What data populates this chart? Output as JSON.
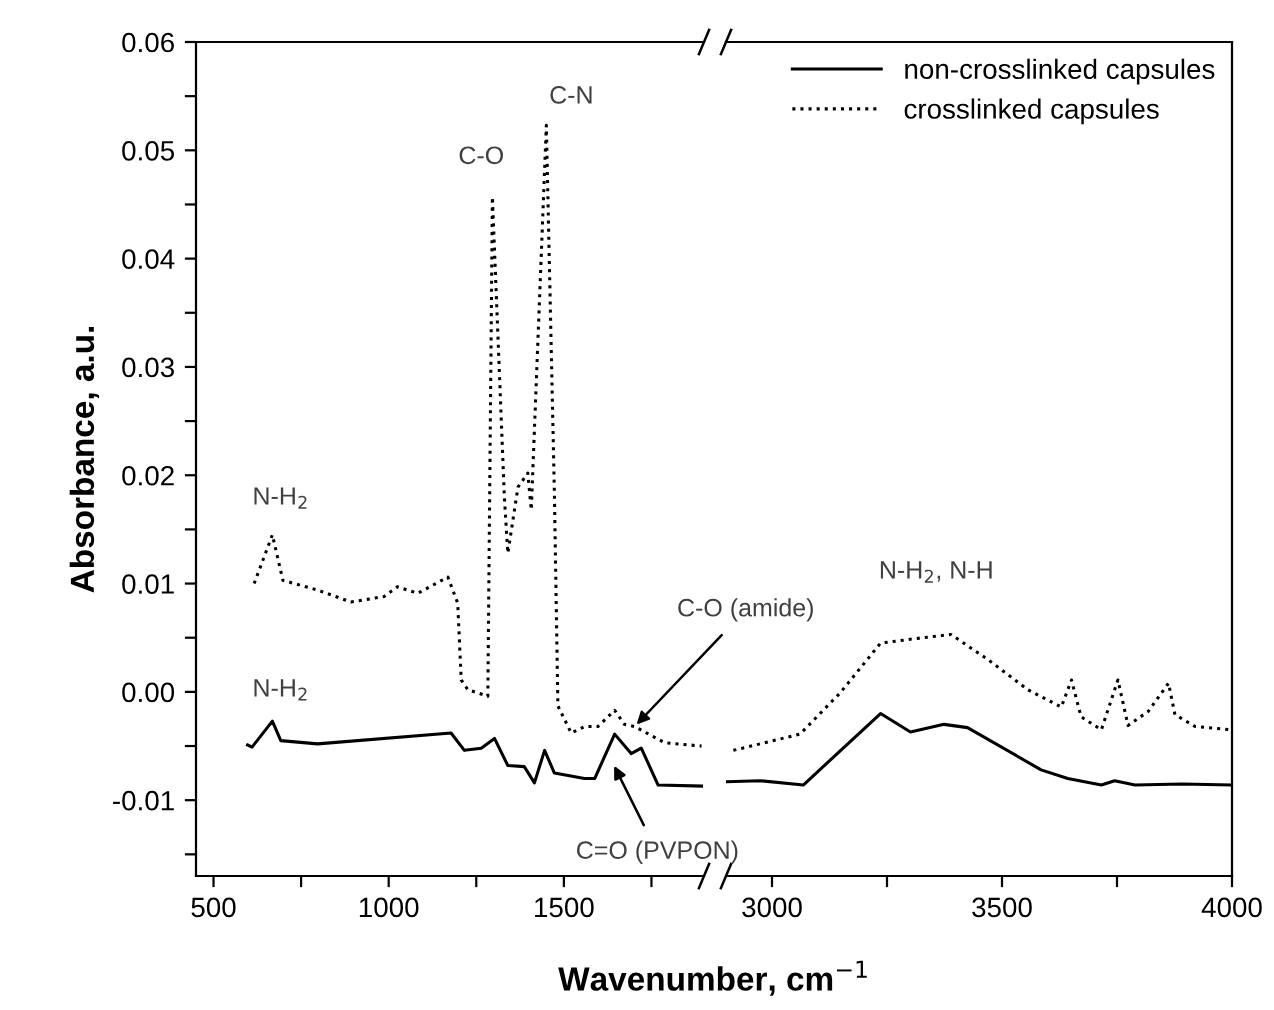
{
  "chart_data": [
    {
      "type": "line",
      "ylabel": "Absorbance, a.u.",
      "xlabel": "Wavenumber, cm$^{−1}$",
      "xlim": [
        450,
        1900
      ],
      "ylim": [
        -0.017,
        0.06
      ],
      "xticks": [
        500,
        {
          "value": 750,
          "label": null
        },
        1000,
        {
          "value": 1250,
          "label": null
        },
        1500,
        {
          "value": 1750,
          "label": null
        }
      ],
      "yticks": [
        {
          "value": -0.015,
          "label": null
        },
        {
          "value": -0.01,
          "label": "-0.01"
        },
        {
          "value": -0.005,
          "label": null
        },
        {
          "value": 0,
          "label": "0.00"
        },
        {
          "value": 0.005,
          "label": null
        },
        {
          "value": 0.01,
          "label": "0.01"
        },
        {
          "value": 0.015,
          "label": null
        },
        {
          "value": 0.02,
          "label": "0.02"
        },
        {
          "value": 0.025,
          "label": null
        },
        {
          "value": 0.03,
          "label": "0.03"
        },
        {
          "value": 0.035,
          "label": null
        },
        {
          "value": 0.04,
          "label": "0.04"
        },
        {
          "value": 0.045,
          "label": null
        },
        {
          "value": 0.05,
          "label": "0.05"
        },
        {
          "value": 0.055,
          "label": null
        },
        {
          "value": 0.06,
          "label": "0.06"
        }
      ],
      "grid": false,
      "series": [
        {
          "color": "#000000",
          "line_style": "solid",
          "x": [
            597,
            610,
            668,
            692,
            797,
            1178,
            1216,
            1264,
            1302,
            1340,
            1387,
            1416,
            1445,
            1473,
            1559,
            1588,
            1645,
            1692,
            1721,
            1769,
            1893
          ],
          "values": [
            -0.0049,
            -0.0051,
            -0.0027,
            -0.0045,
            -0.0048,
            -0.0038,
            -0.0054,
            -0.0052,
            -0.0043,
            -0.0068,
            -0.0069,
            -0.0084,
            -0.0054,
            -0.0075,
            -0.008,
            -0.008,
            -0.0039,
            -0.0057,
            -0.0052,
            -0.0086,
            -0.0087
          ]
        },
        {
          "color": "#000000",
          "line_style": "dotted",
          "x": [
            616,
            668,
            698,
            797,
            892,
            987,
            1025,
            1083,
            1169,
            1197,
            1207,
            1226,
            1283,
            1296,
            1330,
            1340,
            1369,
            1397,
            1407,
            1450,
            1473,
            1483,
            1521,
            1559,
            1597,
            1645,
            1673,
            1702,
            1788,
            1893
          ],
          "values": [
            0.01,
            0.0145,
            0.0103,
            0.0094,
            0.0083,
            0.0088,
            0.0097,
            0.0091,
            0.0106,
            0.0082,
            0.0011,
            0.0002,
            -0.0004,
            0.0457,
            0.0181,
            0.0128,
            0.0189,
            0.0202,
            0.0168,
            0.0523,
            0.0183,
            -0.0013,
            -0.0038,
            -0.0032,
            -0.0032,
            -0.0017,
            -0.003,
            -0.0032,
            -0.0047,
            -0.005
          ]
        }
      ],
      "annotations": [
        {
          "text": "C-O",
          "x": 1296,
          "y": 0.0457
        },
        {
          "text": "C-N",
          "x": 1450,
          "y": 0.0523
        },
        {
          "text": "N-H$_{2}$",
          "x": 668,
          "y": 0.0145
        },
        {
          "text": "N-H$_{2}$",
          "x": 668,
          "y": -0.0027
        },
        {
          "text": "C-O (amide)",
          "x": 1702,
          "y": -0.0032
        },
        {
          "text": "C=O (PVPON)",
          "x": 1640,
          "y": -0.0066
        }
      ]
    },
    {
      "type": "line",
      "xlim": [
        2900,
        4000
      ],
      "ylim": [
        -0.017,
        0.06
      ],
      "tick_labels": "x",
      "xticks": [
        3000,
        {
          "value": 3250,
          "label": null
        },
        3500,
        {
          "value": 3750,
          "label": null
        },
        4000
      ],
      "grid": false,
      "legend": "top right",
      "series": [
        {
          "name": "non-crosslinked capsules",
          "color": "#000000",
          "line_style": "solid",
          "x": [
            2901,
            2974,
            3068,
            3236,
            3301,
            3374,
            3425,
            3585,
            3643,
            3716,
            3745,
            3789,
            3891,
            4000
          ],
          "values": [
            -0.0083,
            -0.0082,
            -0.0086,
            -0.002,
            -0.0037,
            -0.003,
            -0.0033,
            -0.0072,
            -0.008,
            -0.0086,
            -0.0082,
            -0.0086,
            -0.0085,
            -0.0086
          ]
        },
        {
          "name": "crosslinked capsules",
          "color": "#000000",
          "line_style": "dotted",
          "x": [
            2916,
            3061,
            3148,
            3236,
            3309,
            3389,
            3469,
            3556,
            3629,
            3651,
            3672,
            3716,
            3752,
            3774,
            3818,
            3862,
            3876,
            3920,
            4000
          ],
          "values": [
            -0.0054,
            -0.0039,
            -0.0001,
            0.0045,
            0.0049,
            0.0053,
            0.003,
            0.0002,
            -0.0014,
            0.0011,
            -0.0023,
            -0.0035,
            0.0011,
            -0.0031,
            -0.0018,
            0.0008,
            -0.0021,
            -0.0032,
            -0.0035
          ]
        }
      ],
      "annotations": [
        {
          "text": "N-H$_{2}$, N-H",
          "x": 3309,
          "y": 0.0049
        }
      ]
    }
  ]
}
